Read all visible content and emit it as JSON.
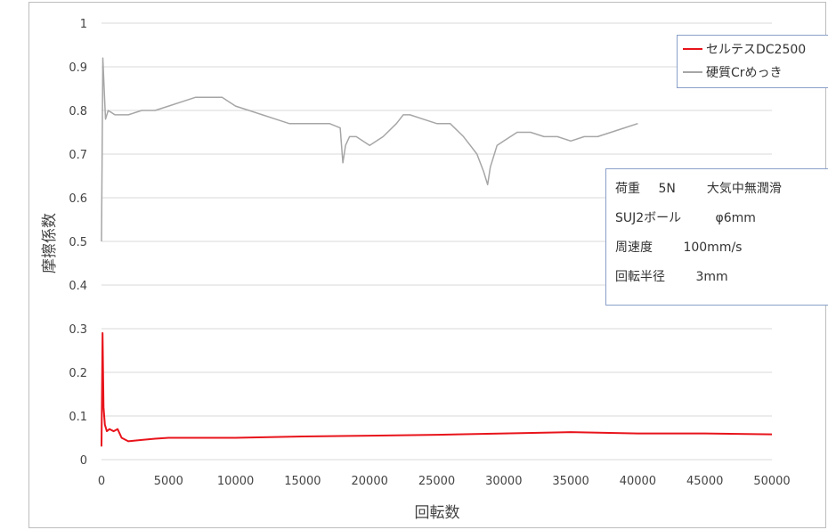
{
  "chart_data": {
    "type": "line",
    "xlabel": "回転数",
    "ylabel": "摩擦係数",
    "xlim": [
      0,
      50000
    ],
    "ylim": [
      0,
      1
    ],
    "x_ticks": [
      "0",
      "5000",
      "10000",
      "15000",
      "20000",
      "25000",
      "30000",
      "35000",
      "40000",
      "45000",
      "50000"
    ],
    "y_ticks": [
      "0",
      "0.1",
      "0.2",
      "0.3",
      "0.4",
      "0.5",
      "0.6",
      "0.7",
      "0.8",
      "0.9",
      "1"
    ],
    "grid": true,
    "legend_position": "top-right",
    "series": [
      {
        "name": "セルテスDC2500",
        "color": "#e8141b",
        "x": [
          0,
          80,
          150,
          250,
          400,
          600,
          900,
          1200,
          1500,
          2000,
          3000,
          4000,
          5000,
          7500,
          10000,
          15000,
          20000,
          25000,
          30000,
          35000,
          40000,
          45000,
          50000
        ],
        "y": [
          0.03,
          0.29,
          0.12,
          0.08,
          0.065,
          0.07,
          0.065,
          0.07,
          0.05,
          0.042,
          0.045,
          0.048,
          0.05,
          0.05,
          0.05,
          0.053,
          0.055,
          0.057,
          0.06,
          0.063,
          0.06,
          0.06,
          0.058
        ]
      },
      {
        "name": "硬質Crめっき",
        "color": "#a6a6a6",
        "x": [
          0,
          100,
          200,
          300,
          500,
          1000,
          2000,
          3000,
          4000,
          5000,
          6000,
          7000,
          8000,
          9000,
          10000,
          11000,
          12000,
          13000,
          14000,
          15000,
          16000,
          17000,
          17800,
          18000,
          18200,
          18500,
          19000,
          20000,
          21000,
          22000,
          22500,
          23000,
          24000,
          25000,
          26000,
          27000,
          27500,
          28000,
          28500,
          28800,
          29000,
          29500,
          30000,
          31000,
          32000,
          33000,
          34000,
          35000,
          36000,
          37000,
          38000,
          39000,
          40000
        ],
        "y": [
          0.5,
          0.92,
          0.85,
          0.78,
          0.8,
          0.79,
          0.79,
          0.8,
          0.8,
          0.81,
          0.82,
          0.83,
          0.83,
          0.83,
          0.81,
          0.8,
          0.79,
          0.78,
          0.77,
          0.77,
          0.77,
          0.77,
          0.76,
          0.68,
          0.72,
          0.74,
          0.74,
          0.72,
          0.74,
          0.77,
          0.79,
          0.79,
          0.78,
          0.77,
          0.77,
          0.74,
          0.72,
          0.7,
          0.66,
          0.63,
          0.67,
          0.72,
          0.73,
          0.75,
          0.75,
          0.74,
          0.74,
          0.73,
          0.74,
          0.74,
          0.75,
          0.76,
          0.77
        ]
      }
    ]
  },
  "info_box": {
    "line1_a": "荷重",
    "line1_b": "5N",
    "line1_c": "大気中無潤滑",
    "line2_a": "SUJ2ボール",
    "line2_b": "φ6mm",
    "line3_a": "周速度",
    "line3_b": "100mm/s",
    "line4_a": "回転半径",
    "line4_b": "3mm"
  }
}
